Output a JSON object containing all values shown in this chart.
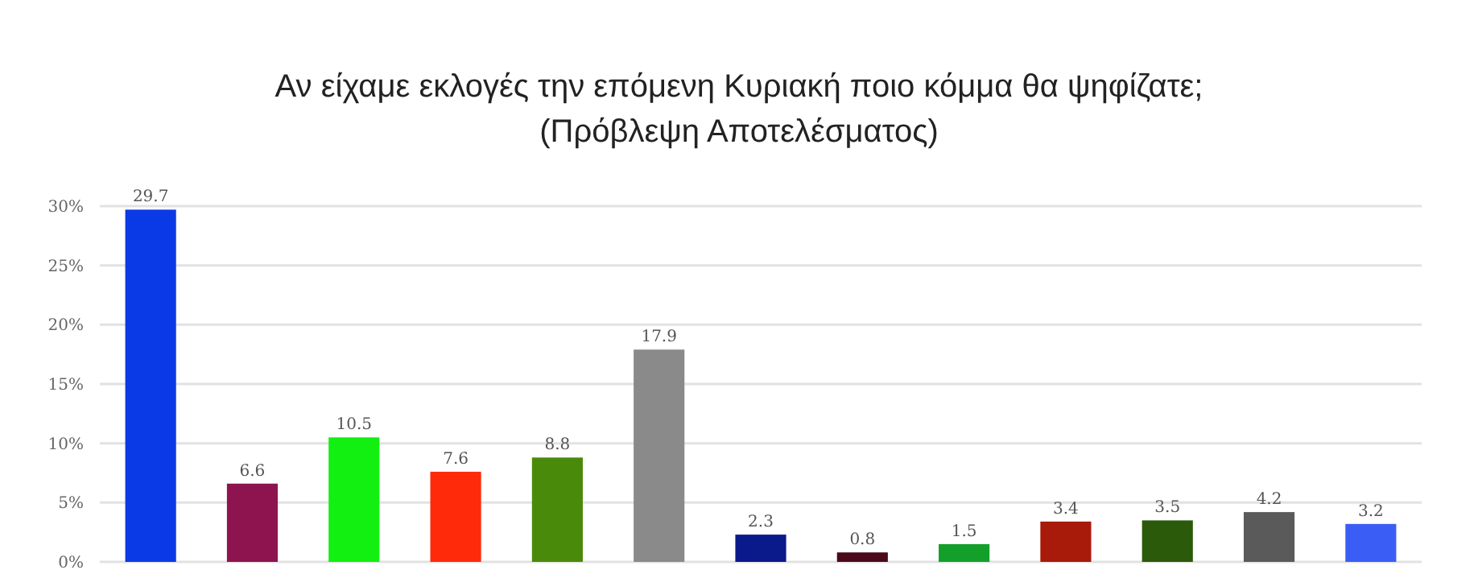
{
  "chart_data": {
    "type": "bar",
    "title": "Αν είχαμε εκλογές την επόμενη Κυριακή ποιο κόμμα θα ψηφίζατε;",
    "subtitle": "(Πρόβλεψη Αποτελέσματος)",
    "categories": [
      null,
      null,
      null,
      null,
      null,
      null,
      null,
      null,
      null,
      null,
      null,
      null,
      null
    ],
    "values": [
      29.7,
      6.6,
      10.5,
      7.6,
      8.8,
      17.9,
      2.3,
      0.8,
      1.5,
      3.4,
      3.5,
      4.2,
      3.2
    ],
    "colors": [
      "#0a3ae6",
      "#8e1450",
      "#12f012",
      "#ff2a0a",
      "#4a8a0a",
      "#8a8a8a",
      "#0a1a8a",
      "#4a0a1a",
      "#12a02a",
      "#a81a0a",
      "#2a5a0a",
      "#5a5a5a",
      "#3a5ef5"
    ],
    "data_labels": true,
    "ylim": [
      0,
      30
    ],
    "yticks": [
      {
        "value": 0,
        "label": "0%"
      },
      {
        "value": 5,
        "label": "5%"
      },
      {
        "value": 10,
        "label": "10%"
      },
      {
        "value": 15,
        "label": "15%"
      },
      {
        "value": 20,
        "label": "20%"
      },
      {
        "value": 25,
        "label": "25%"
      },
      {
        "value": 30,
        "label": "30%"
      }
    ],
    "grid": "y"
  }
}
